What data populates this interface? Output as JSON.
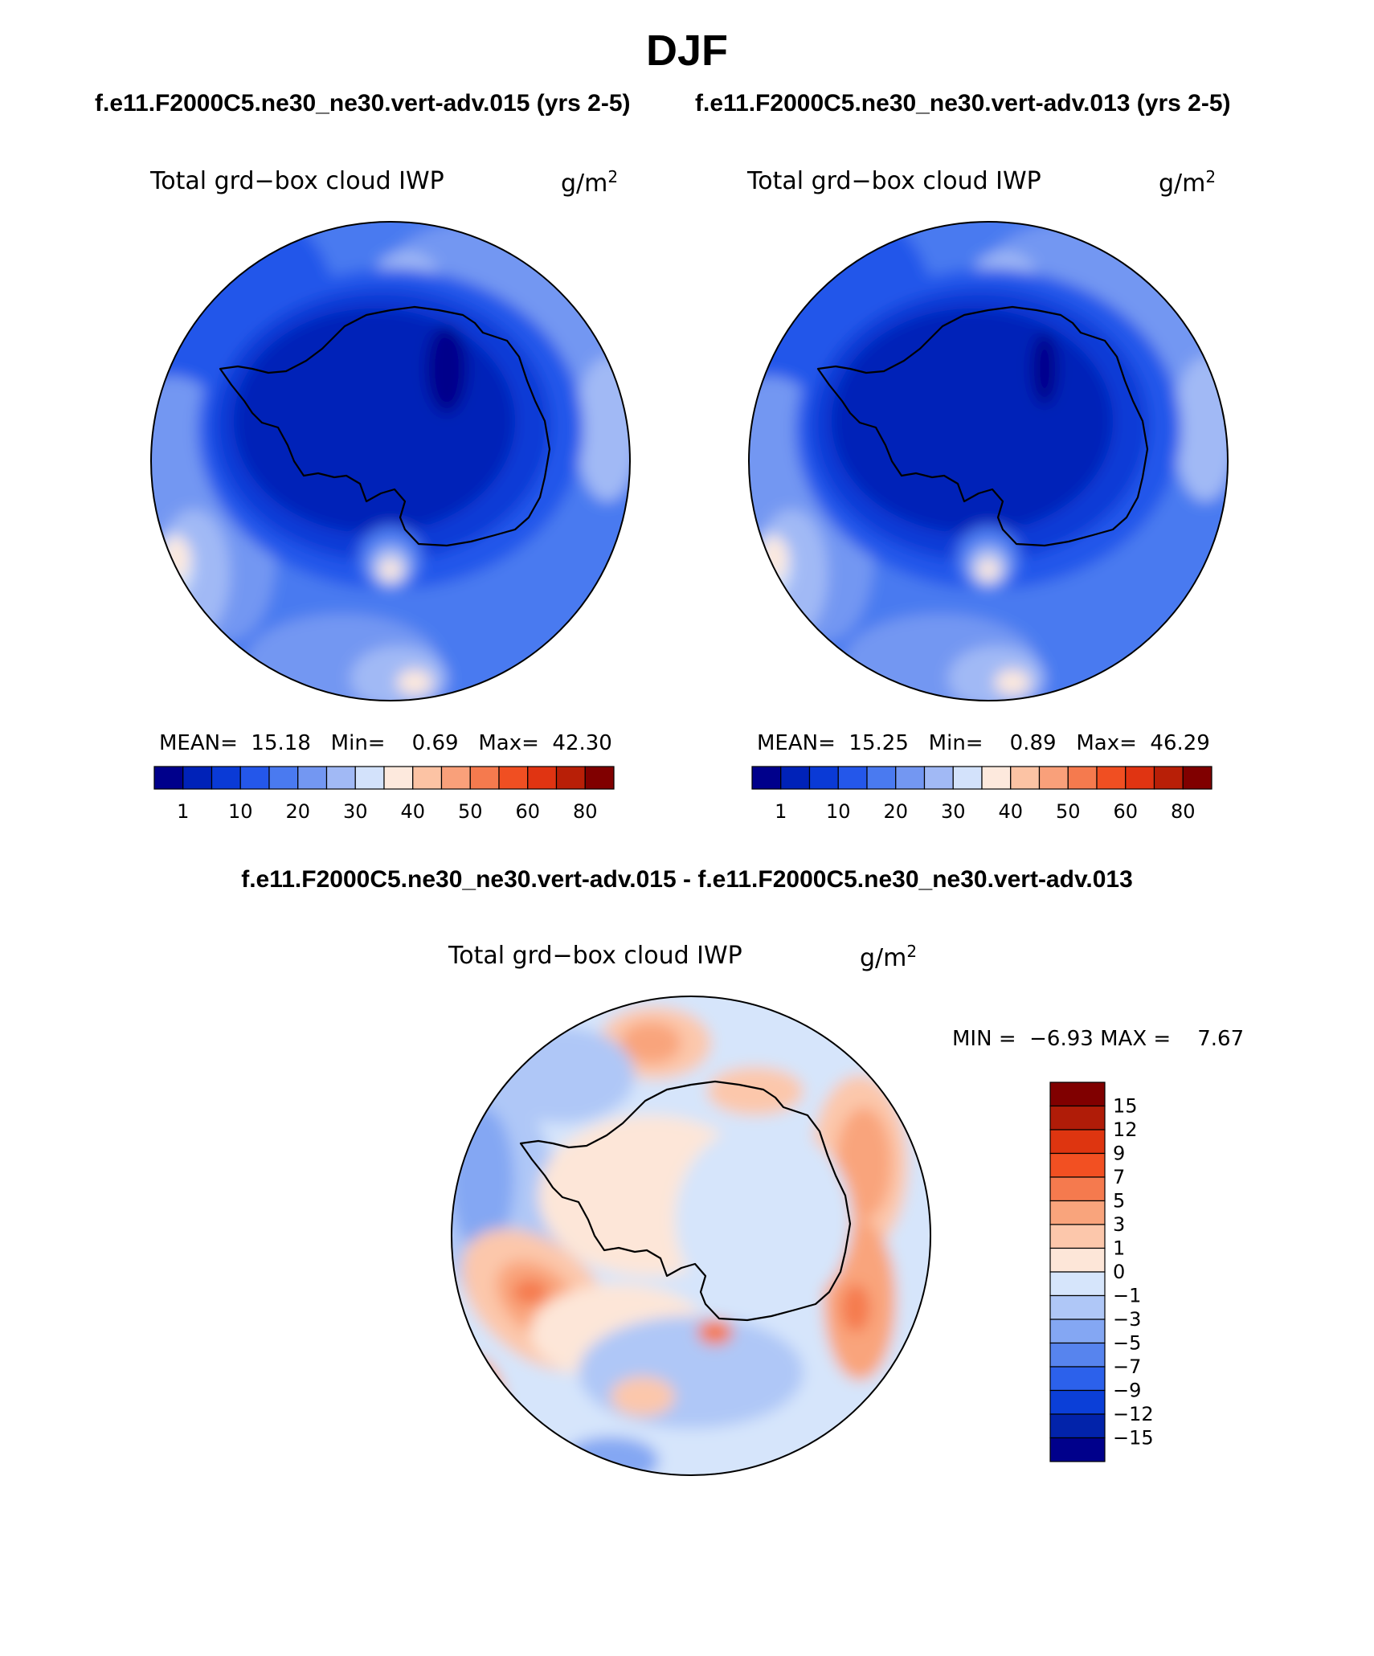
{
  "page": {
    "title": "DJF",
    "case_a_header": "f.e11.F2000C5.ne30_ne30.vert-adv.015 (yrs 2-5)",
    "case_b_header": "f.e11.F2000C5.ne30_ne30.vert-adv.013 (yrs 2-5)",
    "diff_header": "f.e11.F2000C5.ne30_ne30.vert-adv.015 - f.e11.F2000C5.ne30_ne30.vert-adv.013"
  },
  "chart_data": [
    {
      "type": "heatmap",
      "projection": "south polar stereographic",
      "title": "Total grd−box cloud IWP",
      "units": "g/m",
      "units_exp": "2",
      "stats": {
        "mean_label": "MEAN=",
        "mean": "15.18",
        "min_label": "Min=",
        "min": "0.69",
        "max_label": "Max=",
        "max": "42.30"
      },
      "colorbar": {
        "orientation": "horizontal",
        "tick_labels": [
          "1",
          "10",
          "20",
          "30",
          "40",
          "50",
          "60",
          "80"
        ],
        "colors": [
          "#00008b",
          "#0022b8",
          "#0a3ad6",
          "#2457ea",
          "#4a7af0",
          "#7397f2",
          "#a1b9f5",
          "#d3e2fb",
          "#fde9dd",
          "#fcc3a4",
          "#f9a07a",
          "#f57a4e",
          "#f04f22",
          "#e03412",
          "#b81f07",
          "#800000"
        ]
      }
    },
    {
      "type": "heatmap",
      "projection": "south polar stereographic",
      "title": "Total grd−box cloud IWP",
      "units": "g/m",
      "units_exp": "2",
      "stats": {
        "mean_label": "MEAN=",
        "mean": "15.25",
        "min_label": "Min=",
        "min": "0.89",
        "max_label": "Max=",
        "max": "46.29"
      },
      "colorbar": {
        "orientation": "horizontal",
        "tick_labels": [
          "1",
          "10",
          "20",
          "30",
          "40",
          "50",
          "60",
          "80"
        ],
        "colors": [
          "#00008b",
          "#0022b8",
          "#0a3ad6",
          "#2457ea",
          "#4a7af0",
          "#7397f2",
          "#a1b9f5",
          "#d3e2fb",
          "#fde9dd",
          "#fcc3a4",
          "#f9a07a",
          "#f57a4e",
          "#f04f22",
          "#e03412",
          "#b81f07",
          "#800000"
        ]
      }
    },
    {
      "type": "heatmap",
      "projection": "south polar stereographic",
      "title": "Total grd−box cloud IWP",
      "units": "g/m",
      "units_exp": "2",
      "stats": {
        "min_label": "MIN =",
        "min": "−6.93",
        "max_label": "MAX =",
        "max": "7.67"
      },
      "colorbar": {
        "orientation": "vertical",
        "tick_labels": [
          "15",
          "12",
          "9",
          "7",
          "5",
          "3",
          "1",
          "0",
          "−1",
          "−3",
          "−5",
          "−7",
          "−9",
          "−12",
          "−15"
        ],
        "colors": [
          "#800000",
          "#b01c08",
          "#de3510",
          "#f25022",
          "#f57a4e",
          "#f9a47c",
          "#fcc7ab",
          "#fde6d8",
          "#d6e5fb",
          "#afc7f7",
          "#84a7f3",
          "#5784ee",
          "#2c61eb",
          "#0b3fd8",
          "#0223aa",
          "#00008b"
        ]
      }
    }
  ]
}
